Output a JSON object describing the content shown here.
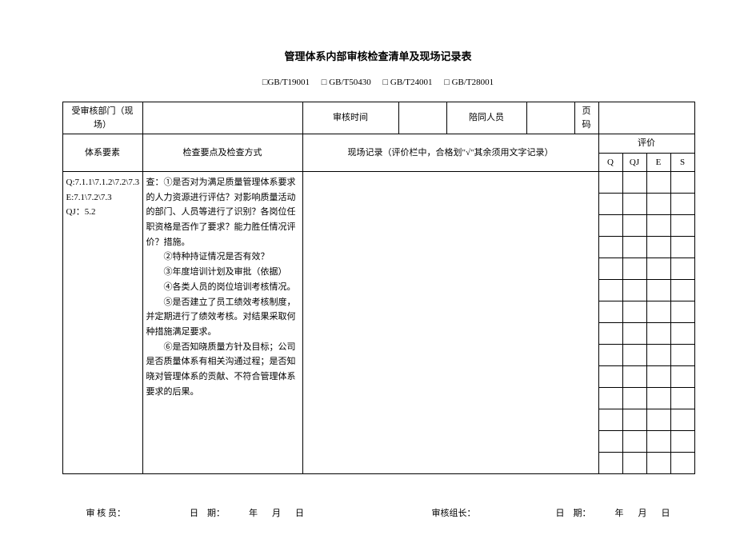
{
  "title": "管理体系内部审核检查清单及现场记录表",
  "standards": {
    "s1": "□GB/T19001",
    "s2": "□ GB/T50430",
    "s3": "□ GB/T24001",
    "s4": "□ GB/T28001"
  },
  "header_row1": {
    "dept_label": "受审核部门（现场）",
    "dept_value": "",
    "time_label": "审核时间",
    "time_value": "",
    "escort_label": "陪同人员",
    "escort_value": "",
    "page_label": "页码",
    "page_value": ""
  },
  "header_row2": {
    "element_label": "体系要素",
    "check_label": "检查要点及检查方式",
    "record_label": "现场记录（评价栏中，合格划\"√\"其余须用文字记录）",
    "eval_label": "评价",
    "q": "Q",
    "qj": "QJ",
    "e": "E",
    "s": "S"
  },
  "body": {
    "element_text": "Q:7.1.1\\7.1.2\\7.2\\7.3\nE:7.1\\7.2\\7.3\nQJ：5.2",
    "check_text_lines": [
      "查：①是否对为满足质量管理体系要求的人力资源进行评估？对影响质量活动的部门、人员等进行了识别？各岗位任职资格是否作了要求？能力胜任情况评价？措施。",
      "　　②特种持证情况是否有效？",
      "　　③年度培训计划及审批（依据）",
      "　　④各类人员的岗位培训考核情况。",
      "　　⑤是否建立了员工绩效考核制度，并定期进行了绩效考核。对结果采取何种措施满足要求。",
      "　　⑥是否知晓质量方针及目标；公司是否质量体系有相关沟通过程；是否知晓对管理体系的贡献、不符合管理体系要求的后果。"
    ],
    "record_text": ""
  },
  "footer": {
    "auditor_label": "审 核 员：",
    "date_label": "日　期：",
    "year": "年",
    "month": "月",
    "day": "日",
    "leader_label": "审核组长："
  },
  "layout": {
    "col_element_w": 100,
    "col_check_w": 200,
    "col_direct_w": 70,
    "col_record_w": 300,
    "col_eval_sub_w": 30,
    "eval_rows": 14
  }
}
